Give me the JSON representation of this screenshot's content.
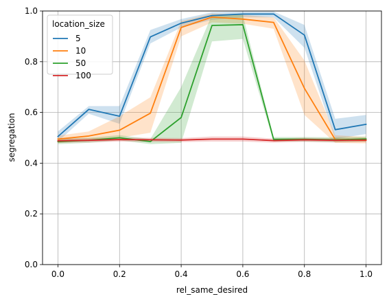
{
  "chart_data": {
    "type": "line",
    "xlabel": "rel_same_desired",
    "ylabel": "segregation",
    "xlim": [
      -0.05,
      1.05
    ],
    "ylim": [
      0.0,
      1.0
    ],
    "xticks": [
      0.0,
      0.2,
      0.4,
      0.6,
      0.8,
      1.0
    ],
    "xtick_labels": [
      "0.0",
      "0.2",
      "0.4",
      "0.6",
      "0.8",
      "1.0"
    ],
    "yticks": [
      0.0,
      0.2,
      0.4,
      0.6,
      0.8,
      1.0
    ],
    "ytick_labels": [
      "0.0",
      "0.2",
      "0.4",
      "0.6",
      "0.8",
      "1.0"
    ],
    "grid": true,
    "legend": {
      "title": "location_size",
      "placement": "upper-left"
    },
    "x": [
      0.0,
      0.1,
      0.2,
      0.3,
      0.4,
      0.5,
      0.6,
      0.7,
      0.8,
      0.9,
      1.0
    ],
    "series": [
      {
        "name": "5",
        "color": "#1f77b4",
        "values": [
          0.505,
          0.612,
          0.585,
          0.898,
          0.952,
          0.982,
          0.988,
          0.988,
          0.905,
          0.532,
          0.553
        ],
        "ci_lower": [
          0.485,
          0.595,
          0.555,
          0.872,
          0.935,
          0.965,
          0.975,
          0.975,
          0.855,
          0.495,
          0.515
        ],
        "ci_upper": [
          0.525,
          0.625,
          0.625,
          0.925,
          0.968,
          0.995,
          0.998,
          0.998,
          0.945,
          0.575,
          0.59
        ]
      },
      {
        "name": "10",
        "color": "#ff7f0e",
        "values": [
          0.495,
          0.507,
          0.53,
          0.597,
          0.935,
          0.976,
          0.968,
          0.955,
          0.695,
          0.493,
          0.49
        ],
        "ci_lower": [
          0.48,
          0.49,
          0.5,
          0.52,
          0.9,
          0.955,
          0.95,
          0.93,
          0.59,
          0.48,
          0.478
        ],
        "ci_upper": [
          0.508,
          0.525,
          0.585,
          0.66,
          0.96,
          0.99,
          0.985,
          0.975,
          0.805,
          0.51,
          0.503
        ]
      },
      {
        "name": "50",
        "color": "#2ca02c",
        "values": [
          0.485,
          0.49,
          0.5,
          0.485,
          0.58,
          0.943,
          0.946,
          0.494,
          0.494,
          0.492,
          0.495
        ],
        "ci_lower": [
          0.475,
          0.48,
          0.49,
          0.475,
          0.48,
          0.88,
          0.89,
          0.485,
          0.485,
          0.482,
          0.485
        ],
        "ci_upper": [
          0.495,
          0.5,
          0.51,
          0.495,
          0.7,
          0.985,
          0.985,
          0.503,
          0.503,
          0.502,
          0.505
        ]
      },
      {
        "name": "100",
        "color": "#d62728",
        "values": [
          0.488,
          0.49,
          0.493,
          0.492,
          0.491,
          0.495,
          0.495,
          0.489,
          0.492,
          0.49,
          0.491
        ],
        "ci_lower": [
          0.48,
          0.482,
          0.485,
          0.484,
          0.483,
          0.485,
          0.485,
          0.481,
          0.484,
          0.482,
          0.483
        ],
        "ci_upper": [
          0.496,
          0.498,
          0.501,
          0.5,
          0.499,
          0.505,
          0.505,
          0.497,
          0.5,
          0.498,
          0.499
        ]
      }
    ]
  }
}
